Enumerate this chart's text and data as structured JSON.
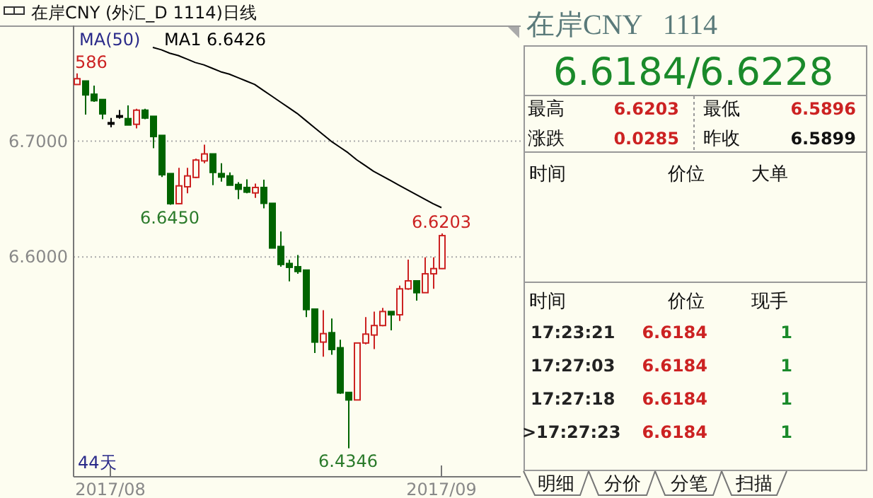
{
  "chart_data": [
    {
      "type": "candlestick",
      "title": "在岸CNY (外汇_D 1114)日线",
      "grid": "y",
      "categories": [
        null,
        null,
        null,
        null,
        "2017/08",
        null,
        null,
        null,
        null,
        null,
        null,
        null,
        null,
        null,
        null,
        null,
        null,
        null,
        null,
        null,
        null,
        null,
        null,
        null,
        null,
        null,
        null,
        null,
        null,
        null,
        null,
        null,
        null,
        null,
        null,
        null,
        null,
        null,
        null,
        null,
        null,
        null,
        null,
        "2017/09"
      ],
      "ylim": [
        6.41,
        6.8
      ],
      "yticks": [
        {
          "value": 6.7,
          "label": "6.7000"
        },
        {
          "value": 6.6,
          "label": "6.6000"
        }
      ],
      "ohlc": [
        [
          6.749,
          6.7586,
          6.749,
          6.754
        ],
        [
          6.752,
          6.752,
          6.723,
          6.74
        ],
        [
          6.7406,
          6.748,
          6.734,
          6.735
        ],
        [
          6.736,
          6.736,
          6.719,
          6.7236
        ],
        [
          6.716,
          6.72,
          6.712,
          6.716
        ],
        [
          6.722,
          6.727,
          6.7195,
          6.722
        ],
        [
          6.7195,
          6.731,
          6.714,
          6.714
        ],
        [
          6.7146,
          6.728,
          6.711,
          6.7268
        ],
        [
          6.7268,
          6.728,
          6.719,
          6.72
        ],
        [
          6.7215,
          6.7215,
          6.694,
          6.704
        ],
        [
          6.705,
          6.705,
          6.669,
          6.671
        ],
        [
          6.672,
          6.672,
          6.645,
          6.646
        ],
        [
          6.646,
          6.677,
          6.6455,
          6.6614
        ],
        [
          6.6606,
          6.677,
          6.655,
          6.67
        ],
        [
          6.6687,
          6.685,
          6.668,
          6.6837
        ],
        [
          6.683,
          6.697,
          6.681,
          6.689
        ],
        [
          6.689,
          6.689,
          6.662,
          6.673
        ],
        [
          6.672,
          6.681,
          6.665,
          6.669
        ],
        [
          6.67,
          6.673,
          6.662,
          6.662
        ],
        [
          6.6626,
          6.6646,
          6.65,
          6.6585
        ],
        [
          6.66,
          6.667,
          6.655,
          6.656
        ],
        [
          6.6553,
          6.6634,
          6.651,
          6.66
        ],
        [
          6.66,
          6.6667,
          6.642,
          6.6463
        ],
        [
          6.6463,
          6.6463,
          6.6077,
          6.6077
        ],
        [
          6.609,
          6.622,
          6.5915,
          6.5935
        ],
        [
          6.5943,
          6.5975,
          6.5789,
          6.591
        ],
        [
          6.5915,
          6.6016,
          6.5854,
          6.5874
        ],
        [
          6.5886,
          6.5886,
          6.548,
          6.5545
        ],
        [
          6.5549,
          6.5549,
          6.517,
          6.5264
        ],
        [
          6.5264,
          6.554,
          6.5138,
          6.5337
        ],
        [
          6.5345,
          6.5467,
          6.5154,
          6.52
        ],
        [
          6.5215,
          6.5285,
          6.4817,
          6.4825
        ],
        [
          6.4829,
          6.4829,
          6.4346,
          6.4764
        ],
        [
          6.4764,
          6.5256,
          6.4764,
          6.5256
        ],
        [
          6.5256,
          6.548,
          6.5244,
          6.5333
        ],
        [
          6.5325,
          6.5528,
          6.5203,
          6.5407
        ],
        [
          6.5407,
          6.556,
          6.54,
          6.5528
        ],
        [
          6.5528,
          6.5528,
          6.5366,
          6.55
        ],
        [
          6.55,
          6.5752,
          6.5447,
          6.5724
        ],
        [
          6.5724,
          6.5976,
          6.5715,
          6.5793
        ],
        [
          6.5793,
          6.5793,
          6.5622,
          6.5691
        ],
        [
          6.5691,
          6.5996,
          6.5691,
          6.5854
        ],
        [
          6.5854,
          6.5996,
          6.5724,
          6.5899
        ],
        [
          6.5899,
          6.6203,
          6.5896,
          6.6184
        ]
      ],
      "colors": [
        "#cc2222",
        "#006400",
        "#006400",
        "#006400",
        "#000000",
        "#000000",
        "#006400",
        "#cc2222",
        "#006400",
        "#006400",
        "#006400",
        "#006400",
        "#cc2222",
        "#cc2222",
        "#cc2222",
        "#cc2222",
        "#006400",
        "#006400",
        "#006400",
        "#006400",
        "#006400",
        "#cc2222",
        "#006400",
        "#006400",
        "#006400",
        "#006400",
        "#006400",
        "#006400",
        "#006400",
        "#cc2222",
        "#006400",
        "#006400",
        "#006400",
        "#cc2222",
        "#cc2222",
        "#cc2222",
        "#cc2222",
        "#006400",
        "#cc2222",
        "#cc2222",
        "#006400",
        "#cc2222",
        "#cc2222",
        "#cc2222"
      ],
      "series": [
        {
          "type": "line",
          "name": "MA1 6.6426",
          "color": "#000000",
          "values": [
            null,
            null,
            null,
            null,
            null,
            null,
            null,
            null,
            null,
            6.781,
            6.779,
            6.776,
            6.774,
            6.771,
            6.768,
            6.766,
            6.763,
            6.76,
            6.758,
            6.755,
            6.752,
            6.749,
            6.744,
            6.739,
            6.734,
            6.729,
            6.724,
            6.718,
            6.712,
            6.706,
            6.7,
            6.695,
            6.69,
            6.684,
            6.679,
            6.674,
            6.67,
            6.666,
            6.662,
            6.658,
            6.654,
            6.65,
            6.646,
            6.6426
          ]
        }
      ],
      "annotations": [
        "MA(50)",
        "586",
        {
          "text": "6.6450",
          "y": 6.645
        },
        {
          "text": "6.4346",
          "y": 6.4346
        },
        {
          "text": "6.6203",
          "y": 6.6203
        },
        "44天"
      ]
    },
    {
      "type": "other",
      "title": "在岸CNY   1114",
      "annotations": [
        "6.6184/6.6228",
        "最高",
        "6.6203",
        "最低",
        "6.5896",
        "涨跌",
        "0.0285",
        "昨收",
        "6.5899",
        "时间",
        "价位",
        "大单",
        "时间",
        "价位",
        "现手",
        "17:23:21",
        "6.6184",
        "1",
        "17:27:03",
        "6.6184",
        "1",
        "17:27:18",
        "6.6184",
        "1",
        ">17:27:23",
        "6.6184",
        "1",
        "明细",
        "分价",
        "分笔",
        "扫描"
      ]
    }
  ]
}
